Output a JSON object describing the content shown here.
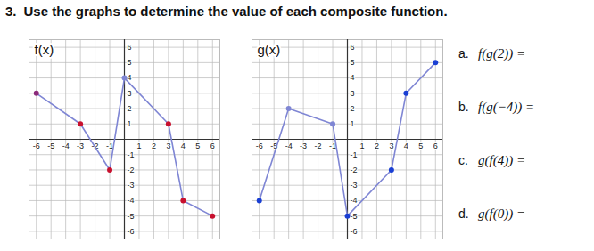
{
  "heading": {
    "number": "3.",
    "text": "Use the graphs to determine the value of each composite function."
  },
  "chart_data": [
    {
      "type": "line",
      "title": "f(x)",
      "x": [
        -6,
        -3,
        -1,
        0,
        3,
        4,
        6
      ],
      "values": [
        3,
        1,
        -2,
        4,
        1,
        -4,
        -5
      ],
      "color": "#7f86d4",
      "marker": "circle",
      "colors": [
        "#8b2a7a",
        "#c8102e",
        "#c8102e",
        "#7f86d4",
        "#c8102e",
        "#c8102e",
        "#c8102e"
      ],
      "xlim": [
        -6.5,
        6.5
      ],
      "ylim": [
        -6.5,
        6.5
      ],
      "xticks": [
        -6,
        -5,
        -4,
        -3,
        -2,
        -1,
        1,
        2,
        3,
        4,
        5,
        6
      ],
      "yticks": [
        -6,
        -5,
        -4,
        -3,
        -2,
        -1,
        1,
        2,
        3,
        4,
        5,
        6
      ],
      "grid": true
    },
    {
      "type": "line",
      "title": "g(x)",
      "x": [
        -6,
        -4,
        -1,
        0,
        3,
        4,
        6
      ],
      "values": [
        -4,
        2,
        1,
        -5,
        -2,
        3,
        5
      ],
      "color": "#7f86d4",
      "marker": "circle",
      "colors": [
        "#1a3fd4",
        "#7f86d4",
        "#7f86d4",
        "#1a3fd4",
        "#1a3fd4",
        "#1a3fd4",
        "#1a3fd4"
      ],
      "xlim": [
        -6.5,
        6.5
      ],
      "ylim": [
        -6.5,
        6.5
      ],
      "xticks": [
        -6,
        -5,
        -4,
        -3,
        -2,
        -1,
        1,
        2,
        3,
        4,
        5,
        6
      ],
      "yticks": [
        -6,
        -5,
        -4,
        -3,
        -2,
        -1,
        1,
        2,
        3,
        4,
        5,
        6
      ],
      "grid": true
    }
  ],
  "questions": [
    {
      "label": "a.",
      "text": "f(g(2)) ="
    },
    {
      "label": "b.",
      "text": "f(g(−4)) ="
    },
    {
      "label": "c.",
      "text": "g(f(4)) ="
    },
    {
      "label": "d.",
      "text": "g(f(0)) ="
    }
  ]
}
